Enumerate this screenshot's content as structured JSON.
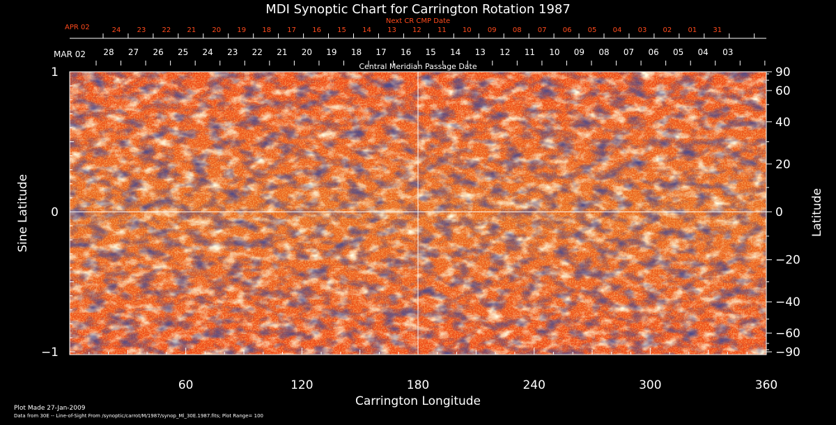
{
  "title": "MDI Synoptic Chart for Carrington Rotation 1987",
  "next_cr_label": "Next CR CMP Date",
  "next_month": "APR 02",
  "next_dates": [
    "24",
    "23",
    "22",
    "21",
    "20",
    "19",
    "18",
    "17",
    "16",
    "15",
    "14",
    "13",
    "12",
    "11",
    "10",
    "09",
    "08",
    "07",
    "06",
    "05",
    "04",
    "03",
    "02",
    "01",
    "31"
  ],
  "cmp_month": "MAR 02",
  "cmp_dates": [
    "28",
    "27",
    "26",
    "25",
    "24",
    "23",
    "22",
    "21",
    "20",
    "19",
    "18",
    "17",
    "16",
    "15",
    "14",
    "13",
    "12",
    "11",
    "10",
    "09",
    "08",
    "07",
    "06",
    "05",
    "04",
    "03"
  ],
  "cmp_label": "Central Meridian Passage Date",
  "y_left_label": "Sine Latitude",
  "y_left_ticks": [
    "1",
    "0",
    "−1"
  ],
  "y_right_label": "Latitude",
  "y_right_ticks": [
    90,
    60,
    40,
    20,
    0,
    -20,
    -40,
    -60,
    -90
  ],
  "x_label": "Carrington Longitude",
  "x_ticks": [
    60,
    120,
    180,
    240,
    300,
    360
  ],
  "footer_line1": "Plot Made 27-Jan-2009",
  "footer_line2": "Data from 30E -- Line-of-Sight From /synoptic/carrot/M/1987/synop_Ml_30E.1987.fits; Plot Range= 100",
  "colors": {
    "background": "#000000",
    "map_base": "#e8501a",
    "positive": "#fff7c8",
    "negative": "#1a1840",
    "grid": "#ffffff",
    "accent_text": "#ff4a1c"
  },
  "map": {
    "type": "heatmap",
    "x_range": [
      0,
      360
    ],
    "y_range": [
      -1,
      1
    ]
  }
}
